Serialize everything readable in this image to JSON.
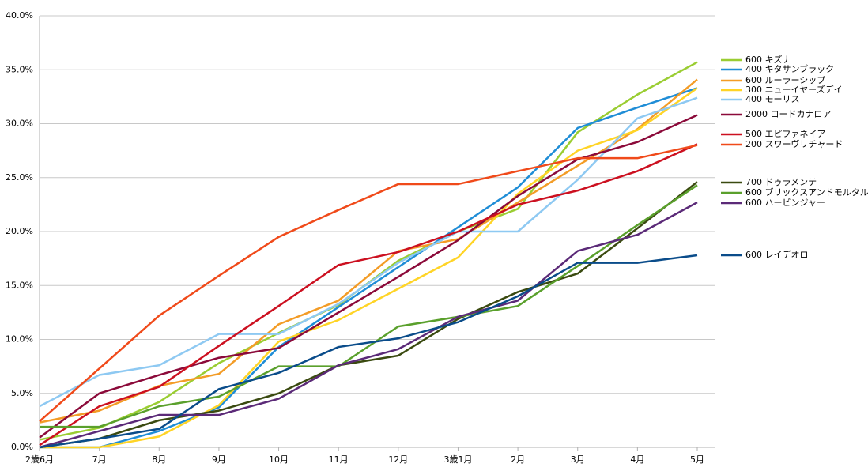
{
  "chart_data": {
    "type": "line",
    "categories": [
      "2歳6月",
      "7月",
      "8月",
      "9月",
      "10月",
      "11月",
      "12月",
      "3歳1月",
      "2月",
      "3月",
      "4月",
      "5月"
    ],
    "ylim": [
      0,
      40
    ],
    "yticks": [
      {
        "value": 0,
        "label": "0.0%"
      },
      {
        "value": 5,
        "label": "5.0%"
      },
      {
        "value": 10,
        "label": "10.0%"
      },
      {
        "value": 15,
        "label": "15.0%"
      },
      {
        "value": 20,
        "label": "20.0%"
      },
      {
        "value": 25,
        "label": "25.0%"
      },
      {
        "value": 30,
        "label": "30.0%"
      },
      {
        "value": 35,
        "label": "35.0%"
      },
      {
        "value": 40,
        "label": "40.0%"
      }
    ],
    "grid": true,
    "legend": "right",
    "series": [
      {
        "name": "600 キズナ",
        "color": "#9acd32",
        "values": [
          0.7,
          1.8,
          4.2,
          7.8,
          10.6,
          13.2,
          17.3,
          20.0,
          22.1,
          29.2,
          32.7,
          35.7
        ]
      },
      {
        "name": "400 キタサンブラック",
        "color": "#1f8dd6",
        "values": [
          0,
          0,
          1.5,
          3.7,
          9.3,
          13.0,
          16.7,
          20.4,
          24.1,
          29.6,
          31.5,
          33.3
        ]
      },
      {
        "name": "600 ルーラーシップ",
        "color": "#f39c26",
        "values": [
          2.3,
          3.4,
          5.7,
          6.8,
          11.4,
          13.6,
          18.2,
          19.3,
          22.7,
          26.1,
          29.5,
          34.1
        ]
      },
      {
        "name": "300 ニューイヤーズデイ",
        "color": "#ffd426",
        "values": [
          0,
          0,
          1.0,
          3.9,
          9.8,
          11.8,
          14.7,
          17.6,
          23.5,
          27.5,
          29.4,
          33.3
        ]
      },
      {
        "name": "400 モーリス",
        "color": "#8ec9f2",
        "values": [
          3.8,
          6.7,
          7.6,
          10.5,
          10.5,
          13.3,
          17.1,
          20.0,
          20.0,
          24.8,
          30.5,
          32.4
        ]
      },
      {
        "name": "2000 ロードカナロア",
        "color": "#8b0a3a",
        "values": [
          0.9,
          5.0,
          6.7,
          8.3,
          9.2,
          12.5,
          15.8,
          19.2,
          23.3,
          26.7,
          28.3,
          30.8
        ]
      },
      {
        "name": "500 エピファネイア",
        "color": "#cc1020",
        "values": [
          0.2,
          3.8,
          5.6,
          9.4,
          13.1,
          16.9,
          18.1,
          20.0,
          22.5,
          23.8,
          25.6,
          28.1
        ]
      },
      {
        "name": "200 スワーヴリチャード",
        "color": "#f04a1a",
        "values": [
          2.4,
          7.3,
          12.2,
          15.9,
          19.5,
          22.0,
          24.4,
          24.4,
          25.6,
          26.8,
          26.8,
          28.0
        ]
      },
      {
        "name": "700 ドゥラメンテ",
        "color": "#3a4a10",
        "values": [
          0,
          0.8,
          2.5,
          3.4,
          5.0,
          7.6,
          8.5,
          11.9,
          14.4,
          16.1,
          20.3,
          24.6
        ]
      },
      {
        "name": "600 ブリックスアンドモルタル",
        "color": "#5aa02c",
        "values": [
          1.9,
          1.9,
          3.8,
          4.7,
          7.5,
          7.5,
          11.2,
          12.1,
          13.1,
          16.8,
          20.6,
          24.3
        ]
      },
      {
        "name": "600 ハービンジャー",
        "color": "#5b2a78",
        "values": [
          0,
          1.5,
          3.0,
          3.0,
          4.5,
          7.6,
          9.1,
          12.1,
          13.6,
          18.2,
          19.7,
          22.7
        ]
      },
      {
        "name": "600 レイデオロ",
        "color": "#0a4c8a",
        "values": [
          0,
          0.8,
          1.7,
          5.4,
          6.9,
          9.3,
          10.1,
          11.6,
          14.0,
          17.1,
          17.1,
          17.8
        ]
      }
    ]
  }
}
